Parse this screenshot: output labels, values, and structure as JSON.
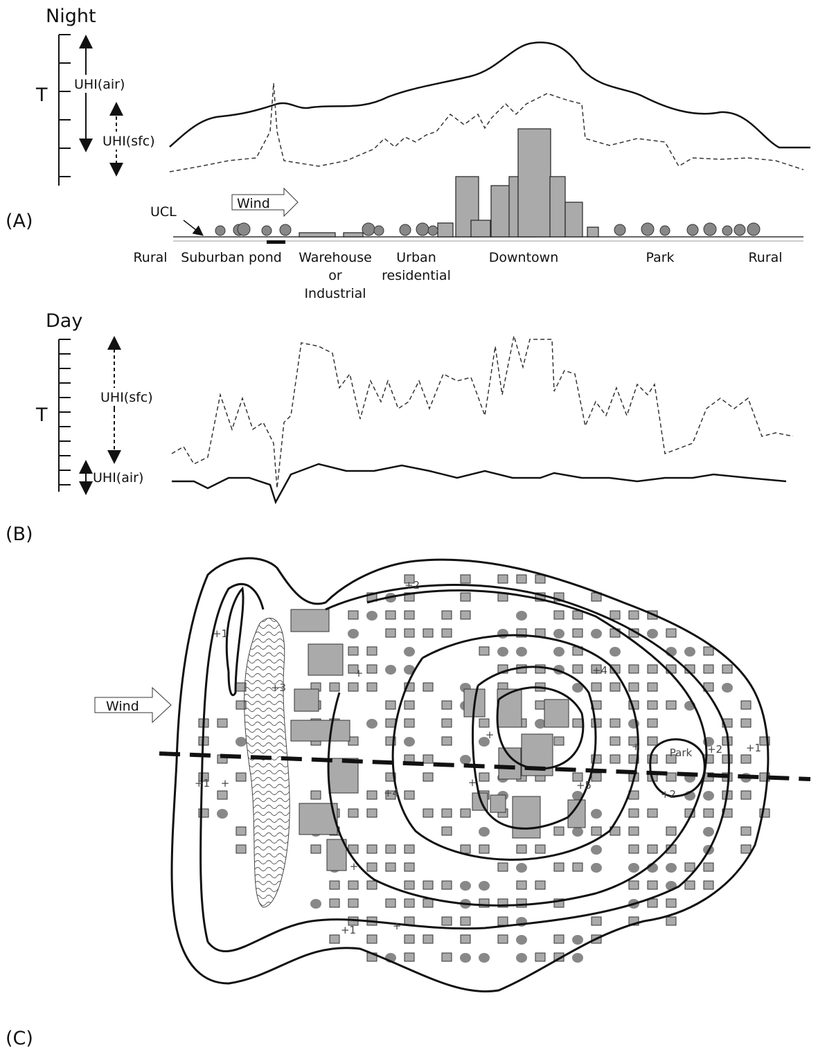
{
  "panel_a": {
    "label": "(A)",
    "title": "Night",
    "y_label": "T",
    "uhi_air": "UHI(air)",
    "uhi_sfc": "UHI(sfc)",
    "ucl": "UCL",
    "wind": "Wind",
    "land_use": [
      {
        "lines": [
          "Rural"
        ]
      },
      {
        "lines": [
          "Suburban pond"
        ]
      },
      {
        "lines": [
          "Warehouse",
          "or",
          "Industrial"
        ]
      },
      {
        "lines": [
          "Urban",
          "residential"
        ]
      },
      {
        "lines": [
          "Downtown"
        ]
      },
      {
        "lines": [
          "Park"
        ]
      },
      {
        "lines": [
          "Rural"
        ]
      }
    ]
  },
  "panel_b": {
    "label": "(B)",
    "title": "Day",
    "y_label": "T",
    "uhi_sfc": "UHI(sfc)",
    "uhi_air": "UHI(air)"
  },
  "panel_c": {
    "label": "(C)",
    "wind": "Wind",
    "contour_labels": [
      "+2",
      "+1",
      "+3",
      "+4",
      "Park",
      "+2",
      "+1",
      "+1",
      "+4",
      "+5",
      "+2",
      "+1",
      "+",
      "+",
      "+",
      "+",
      "+",
      "+",
      "+"
    ]
  }
}
